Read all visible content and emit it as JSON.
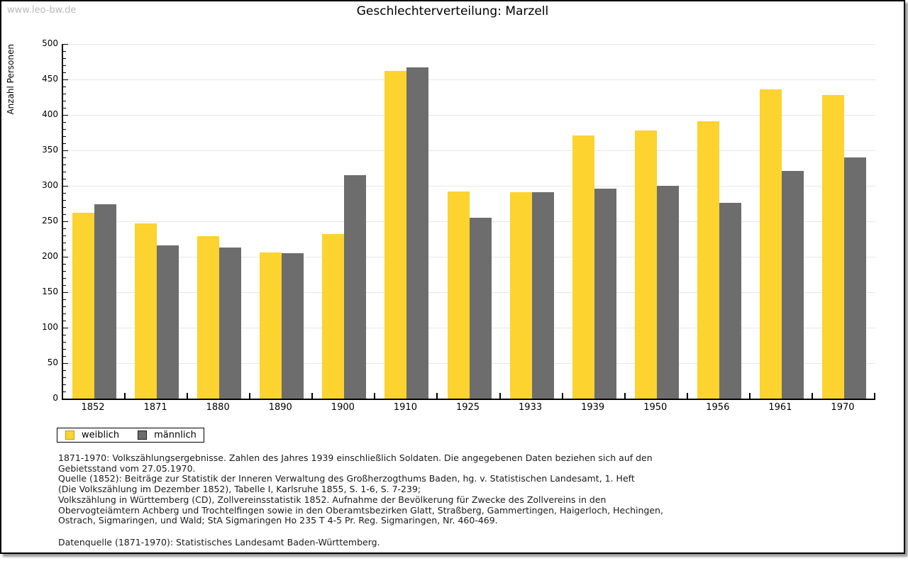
{
  "page": {
    "watermark": "www.leo-bw.de"
  },
  "chart_data": {
    "type": "bar",
    "title": "Geschlechterverteilung: Marzell",
    "xlabel": "",
    "ylabel": "Anzahl Personen",
    "ylim": [
      0,
      500
    ],
    "ytick_step": 50,
    "ytick_minor_step": 10,
    "grid": "horizontal",
    "legend_position": "bottom-left",
    "categories": [
      "1852",
      "1871",
      "1880",
      "1890",
      "1900",
      "1910",
      "1925",
      "1933",
      "1939",
      "1950",
      "1956",
      "1961",
      "1970"
    ],
    "series": [
      {
        "name": "weiblich",
        "color": "#fcd32f",
        "border_color": "#c79a1e",
        "values": [
          262,
          247,
          229,
          206,
          232,
          462,
          292,
          291,
          371,
          378,
          391,
          436,
          428
        ]
      },
      {
        "name": "männlich",
        "color": "#6d6d6d",
        "border_color": "#1a1a1a",
        "values": [
          274,
          216,
          213,
          205,
          315,
          467,
          255,
          291,
          296,
          300,
          276,
          321,
          340
        ]
      }
    ]
  },
  "footer": {
    "lines": [
      "1871-1970: Volkszählungsergebnisse. Zahlen des Jahres 1939 einschließlich Soldaten. Die angegebenen Daten beziehen sich auf den",
      "Gebietsstand vom 27.05.1970.",
      "Quelle (1852): Beiträge zur Statistik der Inneren Verwaltung des Großherzogthums Baden, hg. v. Statistischen Landesamt, 1. Heft",
      "(Die Volkszählung im Dezember 1852), Tabelle I, Karlsruhe 1855, S. 1-6, S. 7-239;",
      "Volkszählung in Württemberg (CD), Zollvereinsstatistik 1852. Aufnahme der Bevölkerung für Zwecke des Zollvereins in den",
      "Obervogteiämtern Achberg und Trochtelfingen sowie in den Oberamtsbezirken Glatt, Straßberg, Gammertingen, Haigerloch, Hechingen,",
      "Ostrach, Sigmaringen, und Wald; StA Sigmaringen Ho 235 T 4-5 Pr. Reg. Sigmaringen, Nr. 460-469."
    ],
    "datenquelle": "Datenquelle (1871-1970): Statistisches Landesamt Baden-Württemberg."
  }
}
